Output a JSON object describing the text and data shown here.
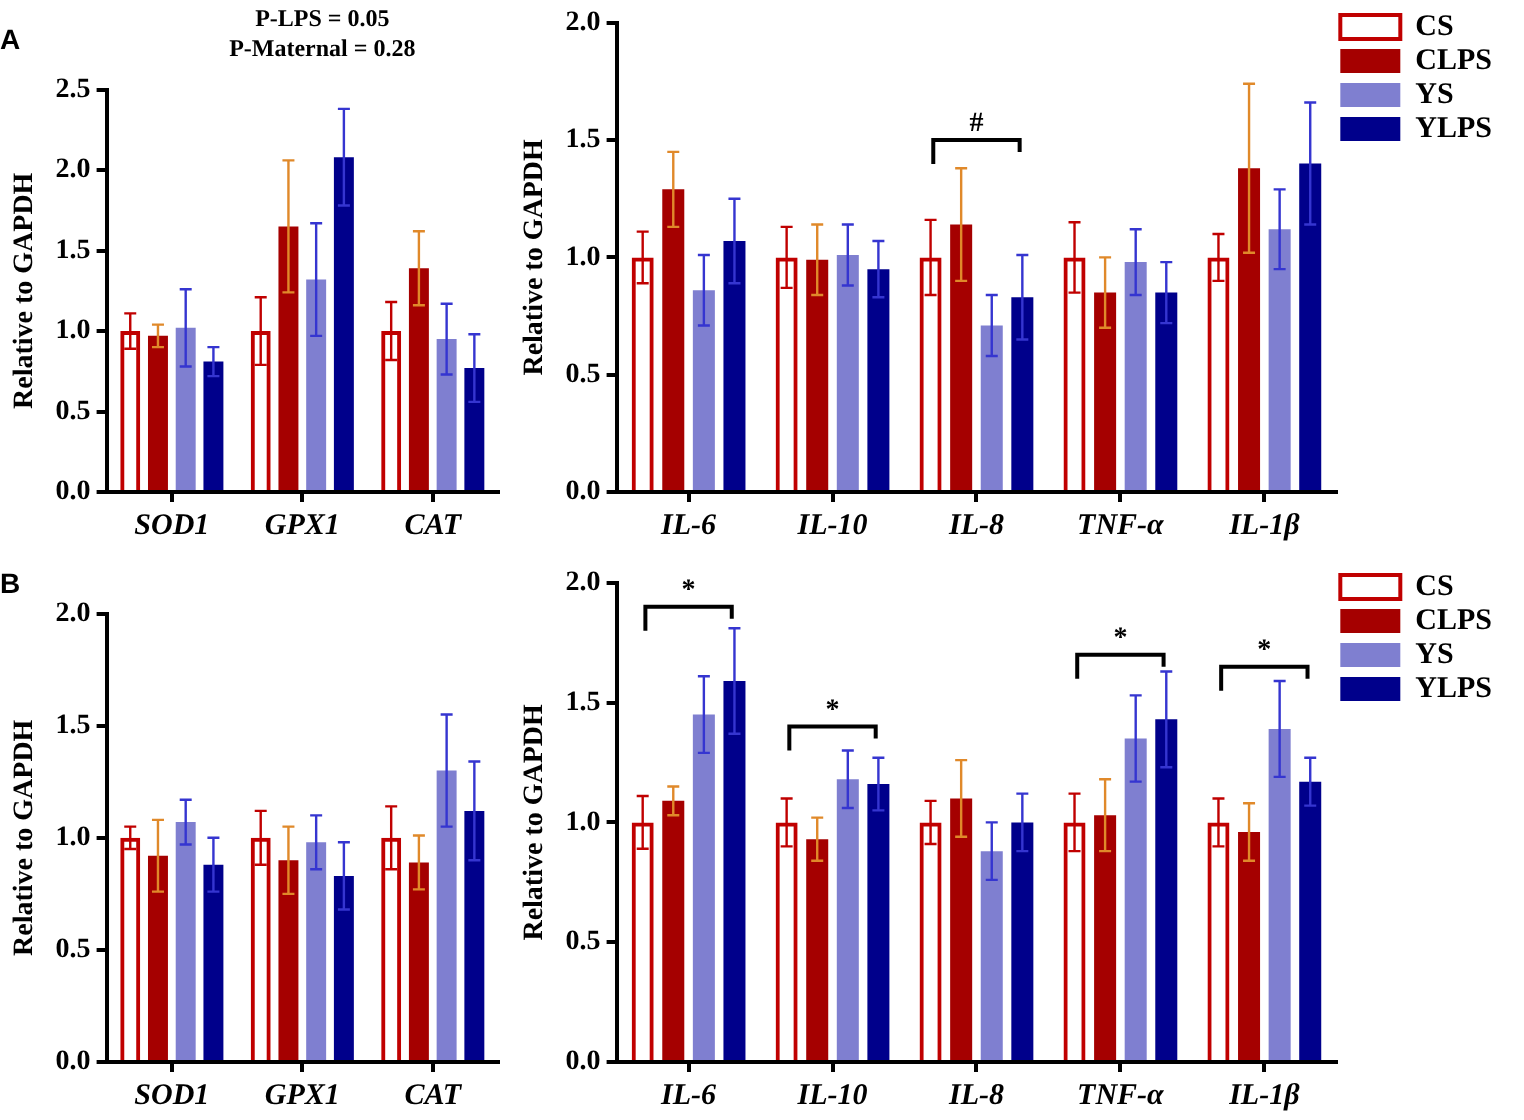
{
  "chart_data": [
    {
      "type": "bar",
      "title": "A",
      "ylabel": "Relative to GAPDH",
      "categories": [
        "SOD1",
        "GPX1",
        "CAT"
      ],
      "ylim": [
        0,
        2.5
      ],
      "yticks": [
        {
          "value": 0,
          "label": "0.0"
        },
        {
          "value": 0.5,
          "label": "0.5"
        },
        {
          "value": 1,
          "label": "1.0"
        },
        {
          "value": 1.5,
          "label": "1.5"
        },
        {
          "value": 2,
          "label": "2.0"
        },
        {
          "value": 2.5,
          "label": "2.5"
        }
      ],
      "legend": false,
      "annotations": [
        "P-LPS = 0.05",
        "P-Maternal = 0.28"
      ],
      "series": [
        {
          "color": "#c00000",
          "values": [
            1.0,
            1.0,
            1.0
          ],
          "errors": [
            0.11,
            0.21,
            0.18
          ]
        },
        {
          "color": "#a50000",
          "values": [
            0.97,
            1.65,
            1.39
          ],
          "errors": [
            0.07,
            0.41,
            0.23
          ]
        },
        {
          "color": "#7f7fd0",
          "values": [
            1.02,
            1.32,
            0.95
          ],
          "errors": [
            0.24,
            0.35,
            0.22
          ]
        },
        {
          "color": "#00008b",
          "values": [
            0.81,
            2.08,
            0.77
          ],
          "errors": [
            0.09,
            0.3,
            0.21
          ]
        }
      ]
    },
    {
      "type": "bar",
      "ylabel": "Relative to GAPDH",
      "categories": [
        "IL-6",
        "IL-10",
        "IL-8",
        "TNF-α",
        "IL-1β"
      ],
      "ylim": [
        0,
        2
      ],
      "yticks": [
        {
          "value": 0,
          "label": "0.0"
        },
        {
          "value": 0.5,
          "label": "0.5"
        },
        {
          "value": 1,
          "label": "1.0"
        },
        {
          "value": 1.5,
          "label": "1.5"
        },
        {
          "value": 2,
          "label": "2.0"
        }
      ],
      "legend": "top right",
      "annotations": [
        "#"
      ],
      "series": [
        {
          "name": "CS",
          "color": "#c00000",
          "values": [
            1.0,
            1.0,
            1.0,
            1.0,
            1.0
          ],
          "errors": [
            0.11,
            0.13,
            0.16,
            0.15,
            0.1
          ]
        },
        {
          "name": "CLPS",
          "color": "#a50000",
          "values": [
            1.29,
            0.99,
            1.14,
            0.85,
            1.38
          ],
          "errors": [
            0.16,
            0.15,
            0.24,
            0.15,
            0.36
          ]
        },
        {
          "name": "YS",
          "color": "#7f7fd0",
          "values": [
            0.86,
            1.01,
            0.71,
            0.98,
            1.12
          ],
          "errors": [
            0.15,
            0.13,
            0.13,
            0.14,
            0.17
          ]
        },
        {
          "name": "YLPS",
          "color": "#00008b",
          "values": [
            1.07,
            0.95,
            0.83,
            0.85,
            1.4
          ],
          "errors": [
            0.18,
            0.12,
            0.18,
            0.13,
            0.26
          ]
        }
      ]
    },
    {
      "type": "bar",
      "title": "B",
      "ylabel": "Relative to GAPDH",
      "categories": [
        "SOD1",
        "GPX1",
        "CAT"
      ],
      "ylim": [
        0,
        2
      ],
      "yticks": [
        {
          "value": 0,
          "label": "0.0"
        },
        {
          "value": 0.5,
          "label": "0.5"
        },
        {
          "value": 1,
          "label": "1.0"
        },
        {
          "value": 1.5,
          "label": "1.5"
        },
        {
          "value": 2,
          "label": "2.0"
        }
      ],
      "legend": false,
      "series": [
        {
          "color": "#c00000",
          "values": [
            1.0,
            1.0,
            1.0
          ],
          "errors": [
            0.05,
            0.12,
            0.14
          ]
        },
        {
          "color": "#a50000",
          "values": [
            0.92,
            0.9,
            0.89
          ],
          "errors": [
            0.16,
            0.15,
            0.12
          ]
        },
        {
          "color": "#7f7fd0",
          "values": [
            1.07,
            0.98,
            1.3
          ],
          "errors": [
            0.1,
            0.12,
            0.25
          ]
        },
        {
          "color": "#00008b",
          "values": [
            0.88,
            0.83,
            1.12
          ],
          "errors": [
            0.12,
            0.15,
            0.22
          ]
        }
      ]
    },
    {
      "type": "bar",
      "ylabel": "Relative to GAPDH",
      "categories": [
        "IL-6",
        "IL-10",
        "IL-8",
        "TNF-α",
        "IL-1β"
      ],
      "ylim": [
        0,
        2
      ],
      "yticks": [
        {
          "value": 0,
          "label": "0.0"
        },
        {
          "value": 0.5,
          "label": "0.5"
        },
        {
          "value": 1,
          "label": "1.0"
        },
        {
          "value": 1.5,
          "label": "1.5"
        },
        {
          "value": 2,
          "label": "2.0"
        }
      ],
      "legend": "top right",
      "annotations": [
        "*",
        "*",
        "*",
        "*"
      ],
      "series": [
        {
          "name": "CS",
          "color": "#c00000",
          "values": [
            1.0,
            1.0,
            1.0,
            1.0,
            1.0
          ],
          "errors": [
            0.11,
            0.1,
            0.09,
            0.12,
            0.1
          ]
        },
        {
          "name": "CLPS",
          "color": "#a50000",
          "values": [
            1.09,
            0.93,
            1.1,
            1.03,
            0.96
          ],
          "errors": [
            0.06,
            0.09,
            0.16,
            0.15,
            0.12
          ]
        },
        {
          "name": "YS",
          "color": "#7f7fd0",
          "values": [
            1.45,
            1.18,
            0.88,
            1.35,
            1.39
          ],
          "errors": [
            0.16,
            0.12,
            0.12,
            0.18,
            0.2
          ]
        },
        {
          "name": "YLPS",
          "color": "#00008b",
          "values": [
            1.59,
            1.16,
            1.0,
            1.43,
            1.17
          ],
          "errors": [
            0.22,
            0.11,
            0.12,
            0.2,
            0.1
          ]
        }
      ]
    }
  ]
}
